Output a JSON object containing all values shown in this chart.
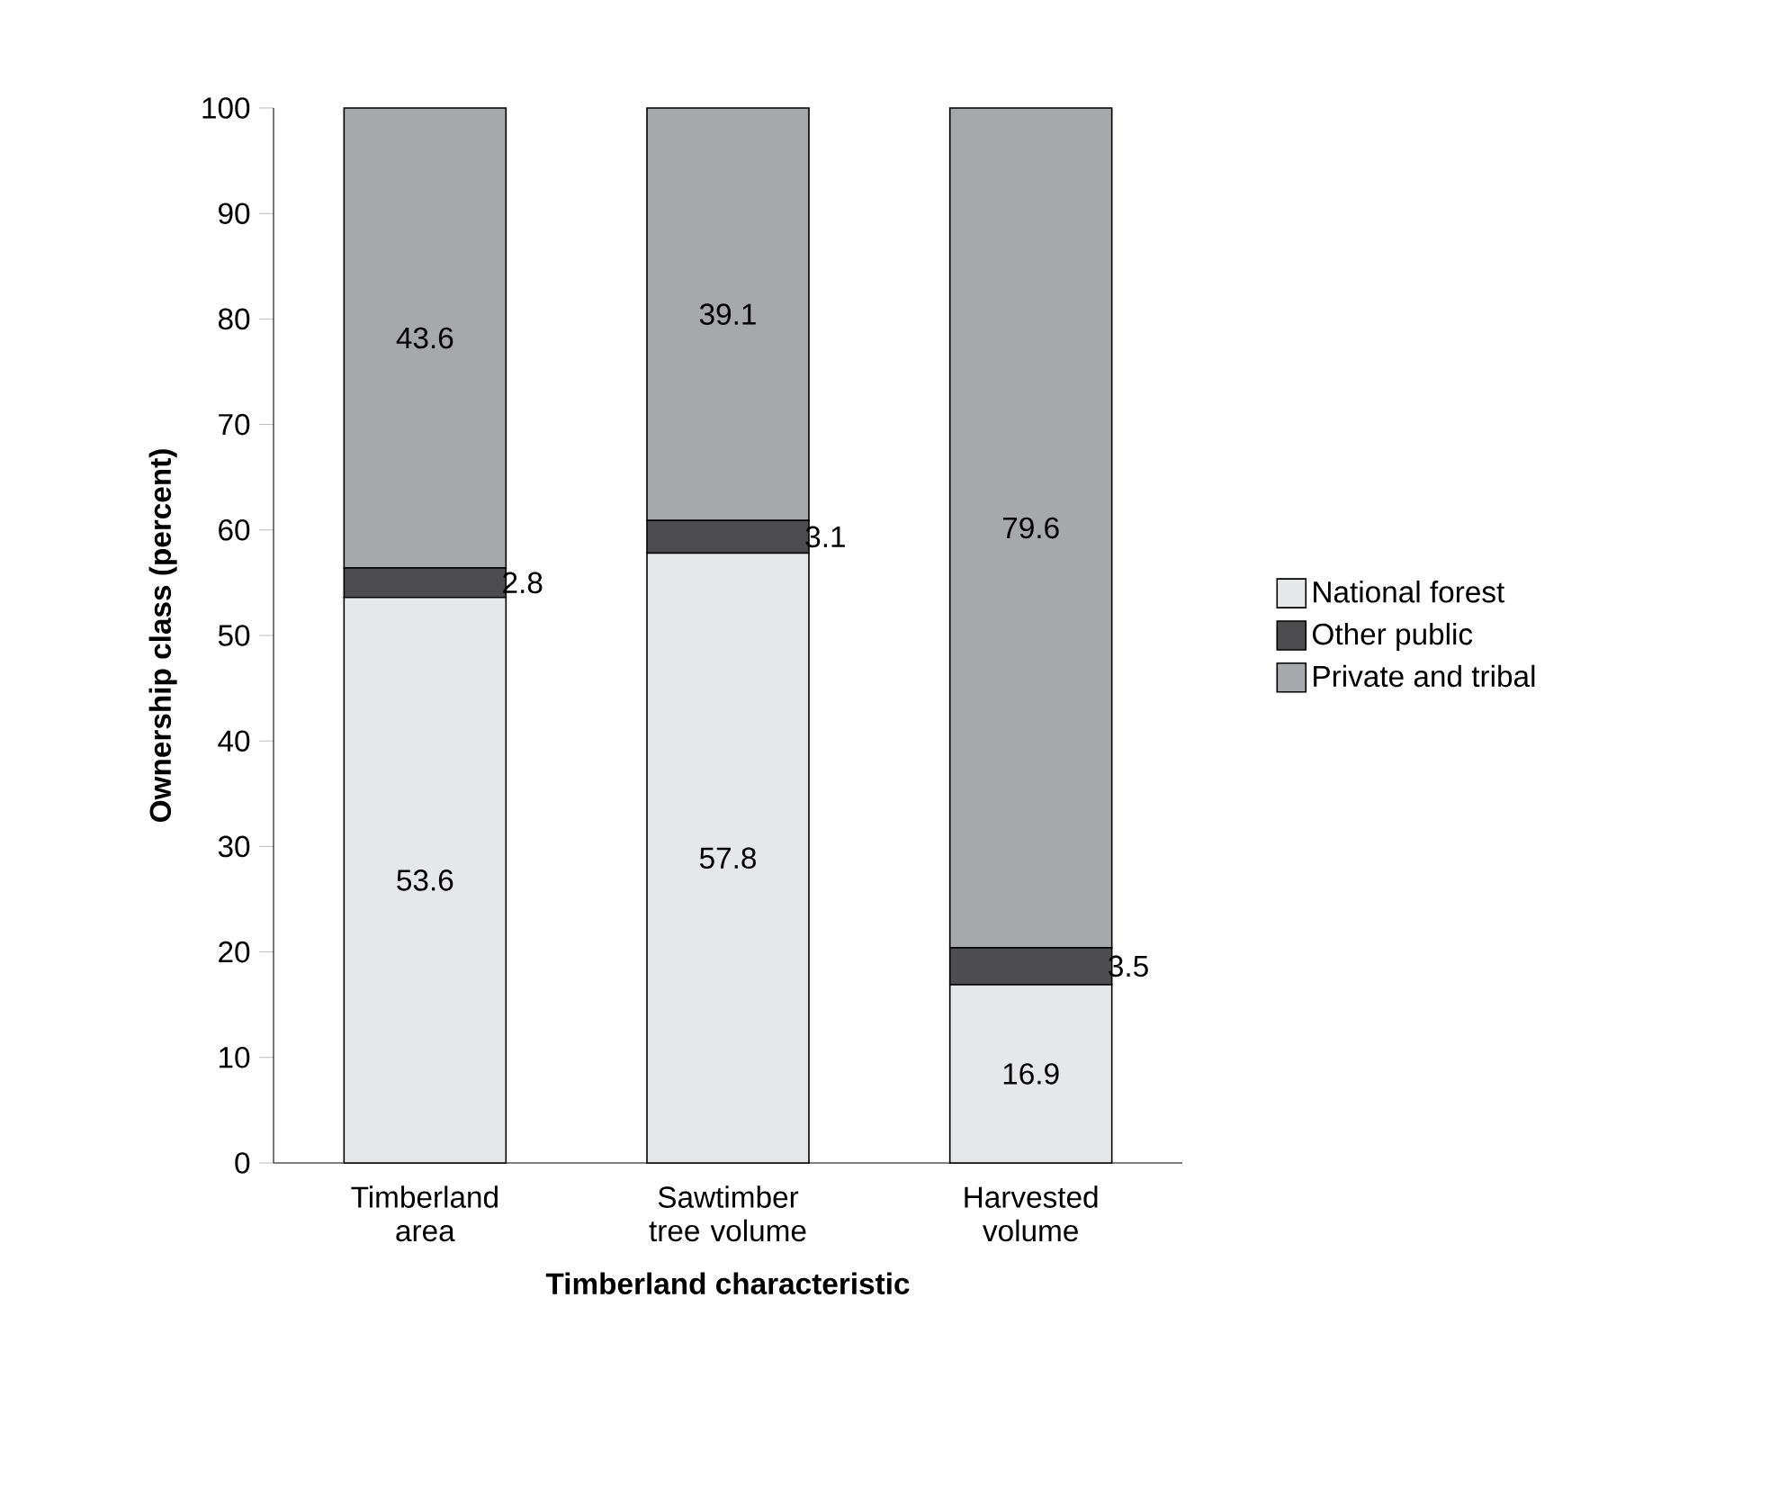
{
  "chart_data": {
    "type": "bar",
    "stacked": true,
    "xlabel": "Timberland characteristic",
    "ylabel": "Ownership class (percent)",
    "categories": [
      "Timberland area",
      "Sawtimber tree volume",
      "Harvested volume"
    ],
    "series": [
      {
        "name": "National forest",
        "color": "#e6e7e8",
        "values": [
          53.6,
          57.8,
          16.9
        ]
      },
      {
        "name": "Other public",
        "color": "#4d4d4f",
        "values": [
          2.8,
          3.1,
          3.5
        ]
      },
      {
        "name": "Private and tribal",
        "color": "#a7a8ab",
        "values": [
          43.6,
          39.1,
          79.6
        ]
      }
    ],
    "ylim": [
      0,
      100
    ],
    "yticks": [
      0,
      10,
      20,
      30,
      40,
      50,
      60,
      70,
      80,
      90,
      100
    ],
    "data_labels": true,
    "legend": "right",
    "grid": false
  }
}
